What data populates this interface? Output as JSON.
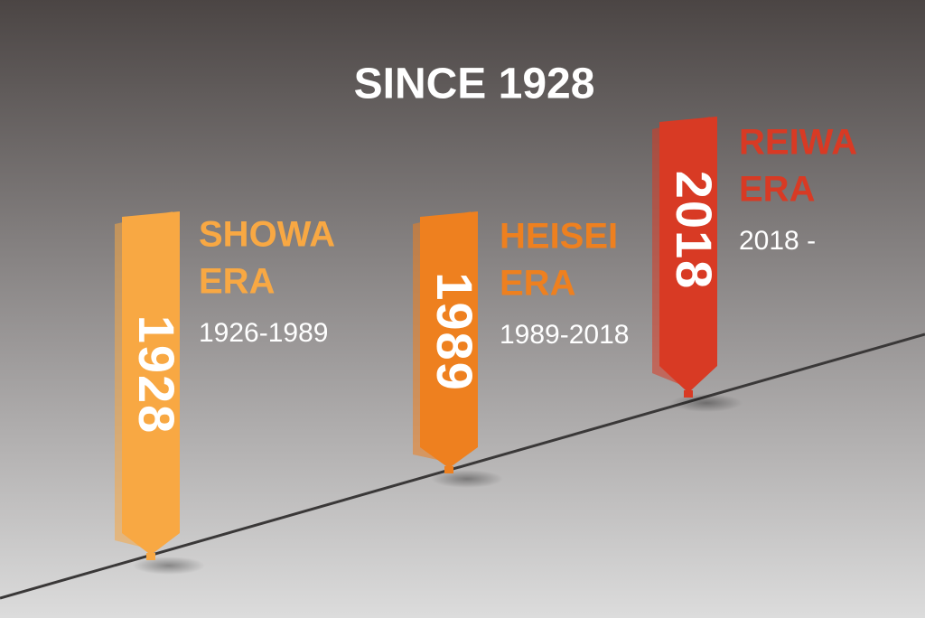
{
  "title": "SINCE 1928",
  "eras": [
    {
      "year": "1928",
      "name_lines": [
        "SHOWA",
        "ERA"
      ],
      "range": "1926-1989",
      "color": "#f8a843"
    },
    {
      "year": "1989",
      "name_lines": [
        "HEISEI",
        "ERA"
      ],
      "range": "1989-2018",
      "color": "#ee801f"
    },
    {
      "year": "2018",
      "name_lines": [
        "REIWA",
        "ERA"
      ],
      "range": "2018 -",
      "color": "#d83a24"
    }
  ]
}
